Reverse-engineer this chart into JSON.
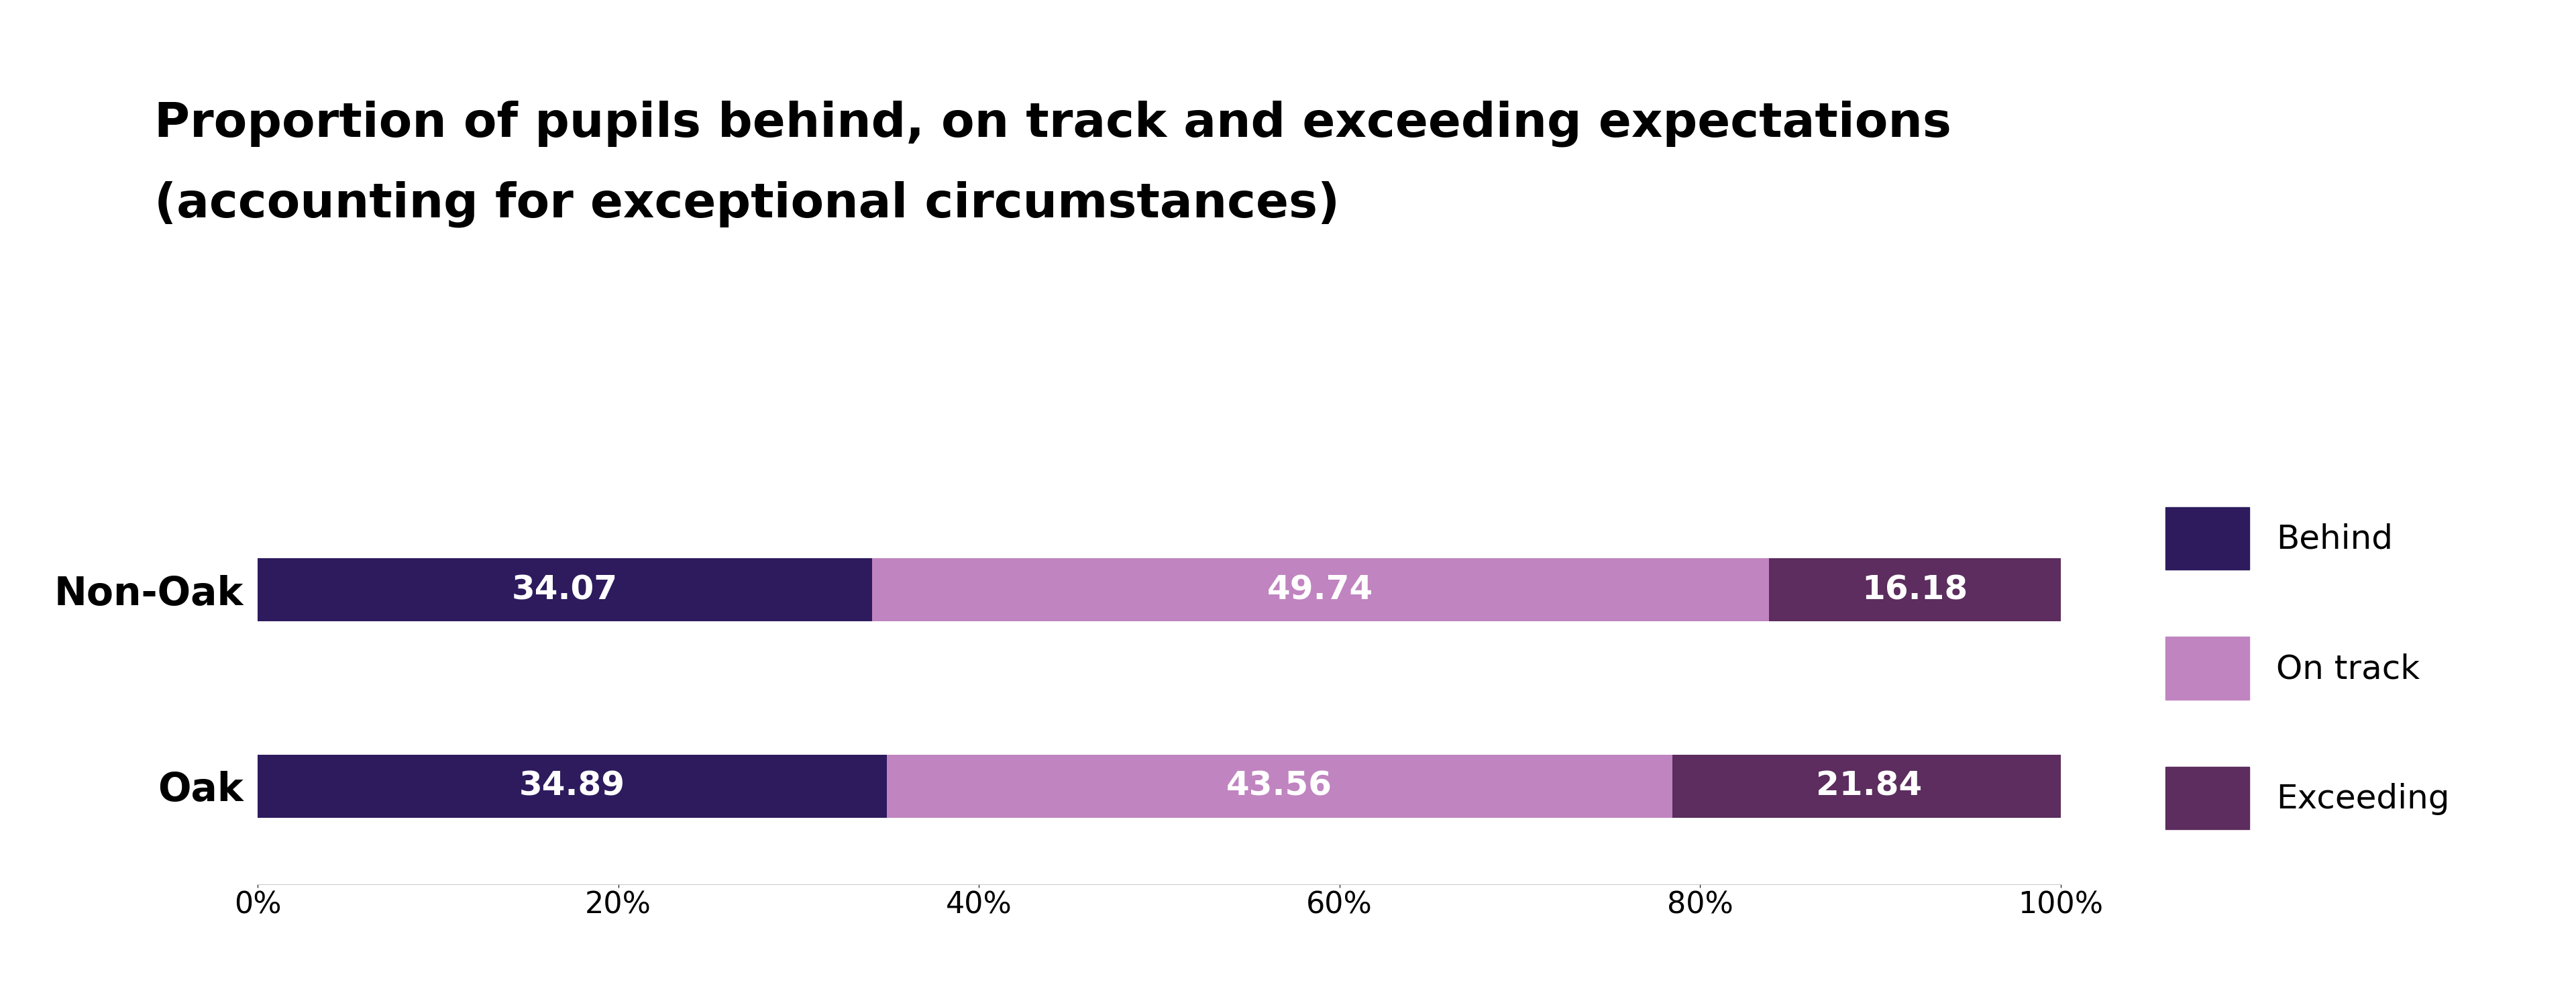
{
  "title_line1": "Proportion of pupils behind, on track and exceeding expectations",
  "title_line2": "(accounting for exceptional circumstances)",
  "categories": [
    "Non-Oak",
    "Oak"
  ],
  "behind": [
    34.07,
    34.89
  ],
  "on_track": [
    49.74,
    43.56
  ],
  "exceeding": [
    16.18,
    21.84
  ],
  "color_behind": "#2d1b5e",
  "color_on_track": "#c084c0",
  "color_exceeding": "#5c2d5e",
  "color_text": "#ffffff",
  "background_color": "#ffffff",
  "legend_labels": [
    "Behind",
    "On track",
    "Exceeding"
  ],
  "bar_height": 0.32,
  "title_fontsize": 52,
  "label_fontsize": 36,
  "tick_fontsize": 32,
  "legend_fontsize": 36,
  "ytick_fontsize": 42
}
